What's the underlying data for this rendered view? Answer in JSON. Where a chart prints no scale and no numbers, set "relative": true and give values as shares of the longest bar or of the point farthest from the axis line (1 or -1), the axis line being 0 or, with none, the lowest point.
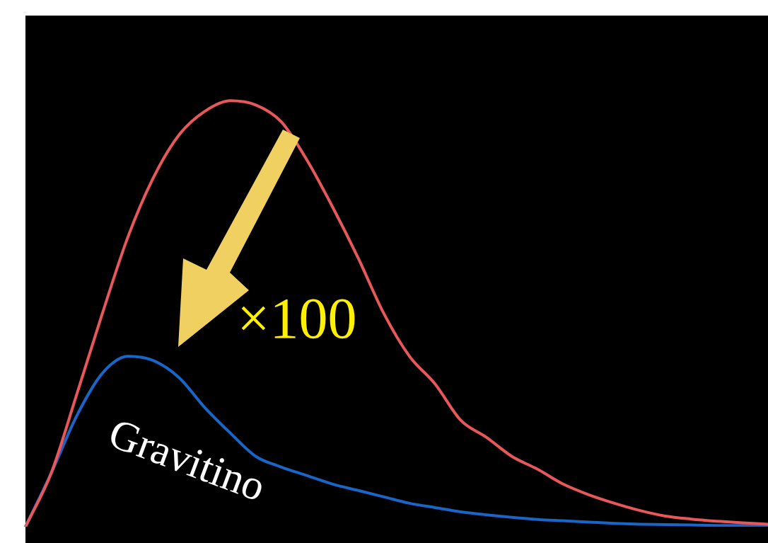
{
  "chart_data": {
    "type": "line",
    "relative": true,
    "tick_labels": false,
    "grid": false,
    "legend": false,
    "marker": "none",
    "line_style": "solid",
    "categories": [
      null,
      null,
      null,
      null,
      null,
      null,
      null,
      null,
      null,
      null,
      null,
      null,
      null,
      null,
      null,
      null,
      null,
      null,
      null,
      null,
      null,
      null,
      null,
      null,
      null,
      null,
      null,
      null,
      null,
      null
    ],
    "series": [
      {
        "color": "#e8585a",
        "values": [
          0,
          0.125,
          0.31,
          0.5,
          0.68,
          0.82,
          0.92,
          0.975,
          1.0,
          0.99,
          0.95,
          0.86,
          0.75,
          0.63,
          0.5,
          0.4,
          0.335,
          0.25,
          0.21,
          0.165,
          0.135,
          0.1,
          0.075,
          0.055,
          0.038,
          0.025,
          0.018,
          0.013,
          0.009,
          0.006
        ]
      },
      {
        "name": "Gravitino",
        "color": "#1a66c8",
        "values": [
          0,
          0.125,
          0.26,
          0.36,
          0.4,
          0.39,
          0.35,
          0.28,
          0.22,
          0.165,
          0.14,
          0.12,
          0.1,
          0.085,
          0.07,
          0.055,
          0.045,
          0.035,
          0.028,
          0.022,
          0.017,
          0.014,
          0.011,
          0.008,
          0.006,
          0.005,
          0.004,
          0.003,
          0.003,
          0.003
        ]
      }
    ],
    "annotations": [
      "×100"
    ]
  }
}
